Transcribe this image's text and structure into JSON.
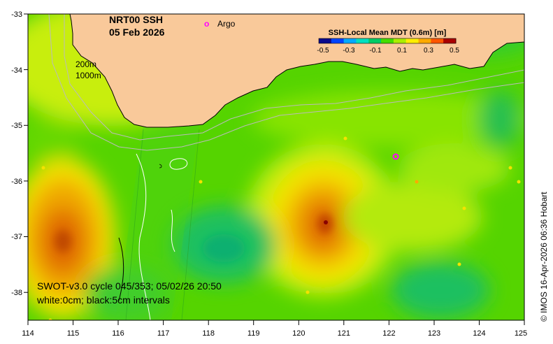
{
  "map": {
    "title_line1": "NRT00 SSH",
    "title_line2": "05 Feb 2026",
    "argo_marker": "o",
    "argo_label": "Argo",
    "argo_color": "#ff00ff",
    "depth_label_200": "200m",
    "depth_label_1000": "1000m",
    "land_color": "#f9c99a",
    "info_line1": "SWOT-v3.0 cycle 045/353; 05/02/26 20:50",
    "info_line2": "white:0cm; black:5cm intervals",
    "timestamp": "© IMOS 16-Apr-2026 06:36 Hobart",
    "lon_range": [
      114,
      125
    ],
    "lat_range": [
      -38.5,
      -33
    ],
    "x_ticks": [
      "114",
      "115",
      "116",
      "117",
      "118",
      "119",
      "120",
      "121",
      "122",
      "123",
      "124",
      "125"
    ],
    "y_ticks": [
      "-33",
      "-34",
      "-35",
      "-36",
      "-37",
      "-38"
    ]
  },
  "colorbar": {
    "title": "SSH-Local Mean MDT (0.6m) [m]",
    "tick_labels": [
      "-0.5",
      "-0.3",
      "-0.1",
      "0.1",
      "0.3",
      "0.5"
    ],
    "colors": [
      "#0a0a8c",
      "#0044ff",
      "#00aaff",
      "#00e0c0",
      "#00cc66",
      "#44dd00",
      "#aaee00",
      "#ffee00",
      "#ffaa00",
      "#ff5500",
      "#aa0000"
    ]
  }
}
